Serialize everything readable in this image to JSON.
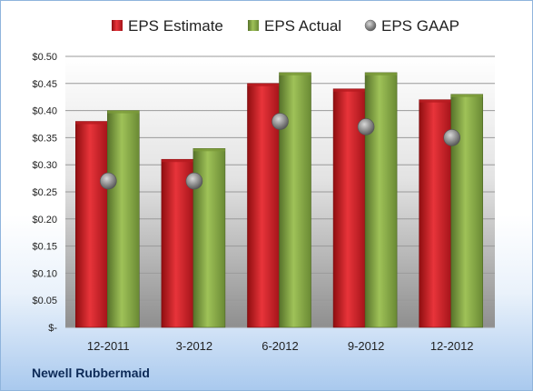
{
  "chart_data": {
    "type": "bar",
    "categories": [
      "12-2011",
      "3-2012",
      "6-2012",
      "9-2012",
      "12-2012"
    ],
    "series": [
      {
        "name": "EPS Estimate",
        "values": [
          0.38,
          0.31,
          0.45,
          0.44,
          0.42
        ],
        "color": "#d42024"
      },
      {
        "name": "EPS Actual",
        "values": [
          0.4,
          0.33,
          0.47,
          0.47,
          0.43
        ],
        "color": "#8db040"
      },
      {
        "name": "EPS GAAP",
        "values": [
          0.27,
          0.27,
          0.38,
          0.37,
          0.35
        ],
        "color": "#8a8a8a",
        "kind": "marker"
      }
    ],
    "ylim": [
      0,
      0.5
    ],
    "yticks": [
      "$-",
      "$0.05",
      "$0.10",
      "$0.15",
      "$0.20",
      "$0.25",
      "$0.30",
      "$0.35",
      "$0.40",
      "$0.45",
      "$0.50"
    ],
    "grid": true,
    "legend_position": "top"
  },
  "company": "Newell Rubbermaid"
}
